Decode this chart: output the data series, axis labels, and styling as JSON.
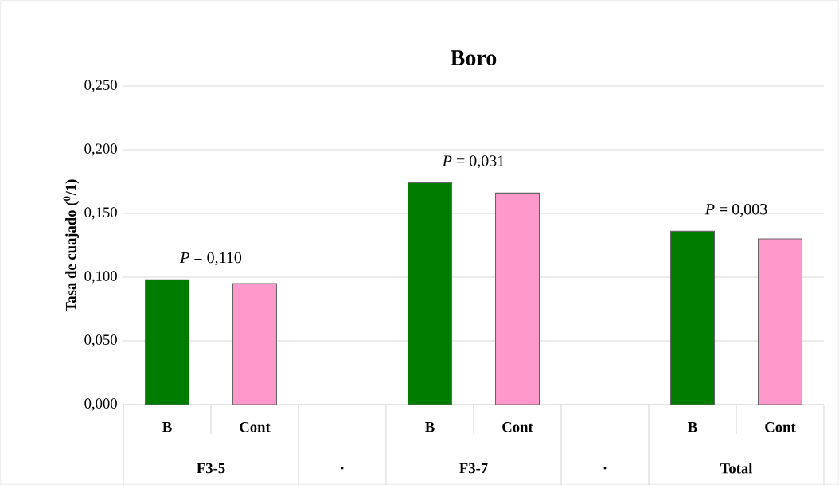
{
  "chart_data": {
    "type": "bar",
    "title": "Boro",
    "ylabel": "Tasa de cuajado ($^{0}$/1)",
    "categories": [
      "B",
      "Cont",
      null,
      "B",
      "Cont",
      null,
      "B",
      "Cont"
    ],
    "values": [
      0.098,
      0.095,
      null,
      0.174,
      0.166,
      null,
      0.136,
      0.13
    ],
    "colors": [
      "#007c00",
      "#ff99cc",
      null,
      "#007c00",
      "#ff99cc",
      null,
      "#007c00",
      "#ff99cc"
    ],
    "ylim": [
      0,
      0.25
    ],
    "yticks": [
      {
        "value": 0,
        "label": "0,000"
      },
      {
        "value": 0.05,
        "label": "0,050"
      },
      {
        "value": 0.1,
        "label": "0,100"
      },
      {
        "value": 0.15,
        "label": "0,150"
      },
      {
        "value": 0.2,
        "label": "0,200"
      },
      {
        "value": 0.25,
        "label": "0,250"
      }
    ],
    "grid": "y",
    "annotations": [
      "*P* = 0,110",
      "*P* = 0,031",
      "*P* = 0,003",
      "F3-5",
      ".",
      "F3-7",
      ".",
      "Total"
    ]
  }
}
